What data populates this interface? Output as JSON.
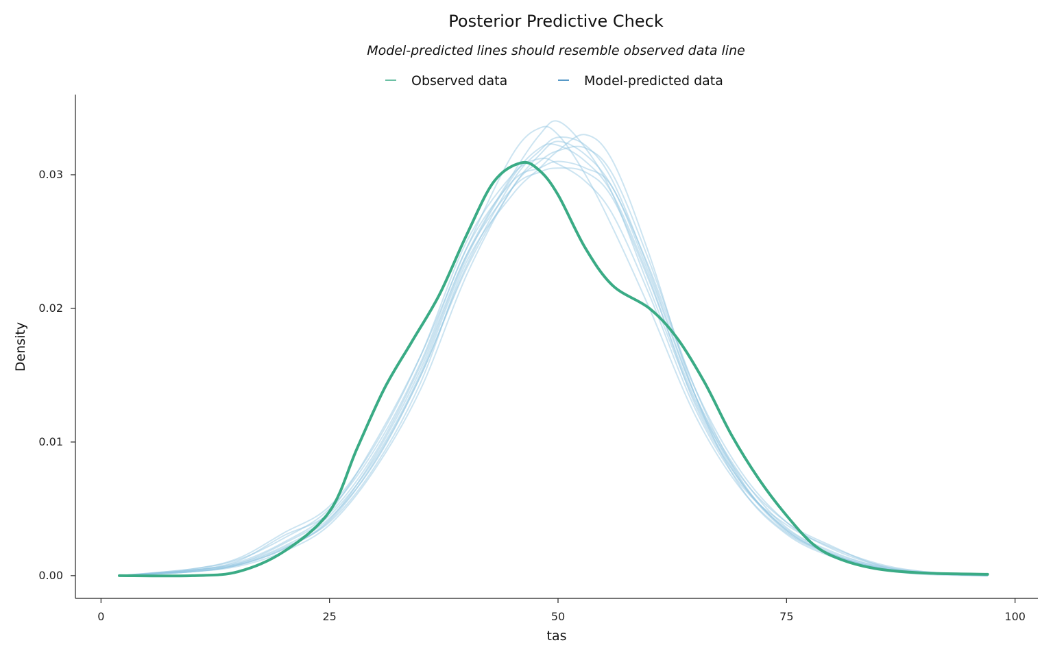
{
  "chart_data": {
    "type": "line",
    "title": "Posterior Predictive Check",
    "subtitle": "Model-predicted lines should resemble observed data line",
    "xlabel": "tas",
    "ylabel": "Density",
    "xlim": [
      -2.8,
      102.5
    ],
    "ylim": [
      -0.0017,
      0.036
    ],
    "x_ticks": [
      0,
      25,
      50,
      75,
      100
    ],
    "x_tick_labels": [
      "0",
      "25",
      "50",
      "75",
      "100"
    ],
    "y_ticks": [
      0.0,
      0.01,
      0.02,
      0.03
    ],
    "y_tick_labels": [
      "0.00",
      "0.01",
      "0.02",
      "0.03"
    ],
    "grid": false,
    "legend": {
      "placement": "top-center",
      "entries": [
        {
          "label": "Observed data",
          "color": "#3aab85"
        },
        {
          "label": "Model-predicted data",
          "color": "#1f77b4"
        }
      ]
    },
    "colors": {
      "observed": "#3aab85",
      "predicted": "#8fc3df"
    },
    "observed": {
      "name": "Observed data",
      "x": [
        2,
        10,
        15,
        20,
        25,
        28,
        31,
        34,
        37,
        40,
        43,
        46,
        48,
        50,
        53,
        56,
        60,
        63,
        66,
        69,
        72,
        75,
        78,
        81,
        85,
        90,
        97
      ],
      "y": [
        0.0,
        0.0,
        0.0003,
        0.0018,
        0.0048,
        0.0095,
        0.014,
        0.0175,
        0.021,
        0.0255,
        0.0295,
        0.0309,
        0.0303,
        0.0285,
        0.0245,
        0.0217,
        0.02,
        0.0178,
        0.0145,
        0.0105,
        0.0072,
        0.0045,
        0.0023,
        0.0012,
        0.0005,
        0.0002,
        0.0001
      ]
    },
    "predicted": [
      {
        "x": [
          2,
          10,
          15,
          20,
          25,
          30,
          35,
          40,
          45,
          48,
          50,
          53,
          56,
          60,
          65,
          70,
          75,
          80,
          85,
          90,
          97
        ],
        "y": [
          0.0,
          0.0004,
          0.001,
          0.0025,
          0.0048,
          0.01,
          0.0165,
          0.0245,
          0.0315,
          0.0335,
          0.033,
          0.03,
          0.026,
          0.02,
          0.012,
          0.0065,
          0.0032,
          0.0015,
          0.0006,
          0.0002,
          0.0
        ]
      },
      {
        "x": [
          2,
          10,
          15,
          20,
          25,
          30,
          35,
          40,
          45,
          48,
          50,
          53,
          56,
          60,
          65,
          70,
          75,
          80,
          85,
          90,
          97
        ],
        "y": [
          0.0,
          0.0003,
          0.0008,
          0.002,
          0.0042,
          0.009,
          0.0155,
          0.024,
          0.03,
          0.033,
          0.034,
          0.032,
          0.0285,
          0.0215,
          0.013,
          0.007,
          0.0033,
          0.0016,
          0.0006,
          0.0002,
          0.0
        ]
      },
      {
        "x": [
          2,
          10,
          15,
          20,
          25,
          30,
          35,
          40,
          45,
          48,
          50,
          53,
          56,
          60,
          65,
          70,
          75,
          80,
          85,
          90,
          97
        ],
        "y": [
          0.0,
          0.0005,
          0.0012,
          0.0028,
          0.005,
          0.0095,
          0.016,
          0.0245,
          0.0295,
          0.0305,
          0.031,
          0.0305,
          0.029,
          0.0225,
          0.0135,
          0.0075,
          0.0036,
          0.0018,
          0.0007,
          0.0002,
          0.0
        ]
      },
      {
        "x": [
          2,
          10,
          15,
          20,
          25,
          30,
          35,
          40,
          45,
          48,
          50,
          53,
          56,
          60,
          65,
          70,
          75,
          80,
          85,
          90,
          97
        ],
        "y": [
          0.0,
          0.0004,
          0.0009,
          0.0022,
          0.0043,
          0.0085,
          0.015,
          0.023,
          0.029,
          0.0315,
          0.0325,
          0.0315,
          0.029,
          0.023,
          0.014,
          0.0078,
          0.004,
          0.002,
          0.0008,
          0.0002,
          0.0
        ]
      },
      {
        "x": [
          2,
          10,
          15,
          20,
          25,
          30,
          35,
          40,
          45,
          48,
          50,
          53,
          56,
          60,
          65,
          70,
          75,
          80,
          85,
          90,
          97
        ],
        "y": [
          0.0,
          0.0003,
          0.0007,
          0.0018,
          0.0038,
          0.008,
          0.014,
          0.0225,
          0.029,
          0.031,
          0.0318,
          0.032,
          0.03,
          0.0235,
          0.014,
          0.0072,
          0.0034,
          0.0016,
          0.0006,
          0.0002,
          0.0
        ]
      },
      {
        "x": [
          2,
          10,
          15,
          20,
          25,
          30,
          35,
          40,
          45,
          48,
          50,
          53,
          56,
          60,
          65,
          70,
          75,
          80,
          85,
          90,
          97
        ],
        "y": [
          0.0,
          0.0005,
          0.0013,
          0.0032,
          0.0052,
          0.0098,
          0.0165,
          0.025,
          0.03,
          0.0312,
          0.0308,
          0.0295,
          0.027,
          0.021,
          0.0125,
          0.0068,
          0.0038,
          0.0021,
          0.0009,
          0.0003,
          0.0
        ]
      },
      {
        "x": [
          2,
          10,
          15,
          20,
          25,
          30,
          35,
          40,
          45,
          48,
          50,
          53,
          56,
          60,
          65,
          70,
          75,
          80,
          85,
          90,
          97
        ],
        "y": [
          0.0,
          0.0003,
          0.0008,
          0.0021,
          0.004,
          0.0082,
          0.0145,
          0.0235,
          0.0285,
          0.0305,
          0.0318,
          0.033,
          0.031,
          0.024,
          0.0135,
          0.0066,
          0.0031,
          0.0014,
          0.0005,
          0.0001,
          0.0
        ]
      },
      {
        "x": [
          2,
          10,
          15,
          20,
          25,
          30,
          35,
          40,
          45,
          48,
          50,
          53,
          56,
          60,
          65,
          70,
          75,
          80,
          85,
          90,
          97
        ],
        "y": [
          0.0,
          0.0004,
          0.0011,
          0.003,
          0.0047,
          0.0092,
          0.0158,
          0.024,
          0.029,
          0.0302,
          0.0305,
          0.0302,
          0.0282,
          0.022,
          0.0132,
          0.0074,
          0.004,
          0.0022,
          0.0008,
          0.0003,
          0.0
        ]
      },
      {
        "x": [
          2,
          10,
          15,
          20,
          25,
          30,
          35,
          40,
          45,
          48,
          50,
          53,
          56,
          60,
          65,
          70,
          75,
          80,
          85,
          90,
          97
        ],
        "y": [
          0.0,
          0.0004,
          0.0009,
          0.0024,
          0.0045,
          0.0088,
          0.0152,
          0.0238,
          0.0298,
          0.032,
          0.0322,
          0.031,
          0.0285,
          0.0222,
          0.0128,
          0.007,
          0.0035,
          0.0017,
          0.0007,
          0.0002,
          0.0
        ]
      },
      {
        "x": [
          2,
          10,
          15,
          20,
          25,
          30,
          35,
          40,
          45,
          48,
          50,
          53,
          56,
          60,
          65,
          70,
          75,
          80,
          85,
          90,
          97
        ],
        "y": [
          0.0,
          0.0003,
          0.0008,
          0.002,
          0.0041,
          0.0086,
          0.015,
          0.0232,
          0.0295,
          0.0318,
          0.0328,
          0.0322,
          0.0295,
          0.0228,
          0.0135,
          0.0071,
          0.0034,
          0.0016,
          0.0006,
          0.0002,
          0.0
        ]
      }
    ]
  }
}
